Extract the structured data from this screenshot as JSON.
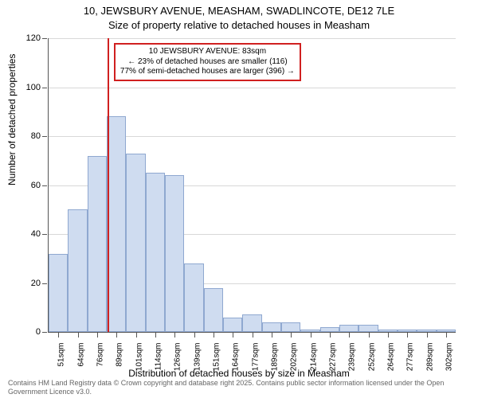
{
  "chart": {
    "type": "histogram",
    "title_main": "10, JEWSBURY AVENUE, MEASHAM, SWADLINCOTE, DE12 7LE",
    "title_sub": "Size of property relative to detached houses in Measham",
    "y_label": "Number of detached properties",
    "x_label": "Distribution of detached houses by size in Measham",
    "background_color": "#ffffff",
    "grid_color": "#d8d8d8",
    "axis_color": "#555555",
    "bar_fill": "#cfdcf0",
    "bar_border": "#8fa8d0",
    "marker_color": "#d02020",
    "y": {
      "min": 0,
      "max": 120,
      "ticks": [
        0,
        20,
        40,
        60,
        80,
        100,
        120
      ]
    },
    "x_categories": [
      "51sqm",
      "64sqm",
      "76sqm",
      "89sqm",
      "101sqm",
      "114sqm",
      "126sqm",
      "139sqm",
      "151sqm",
      "164sqm",
      "177sqm",
      "189sqm",
      "202sqm",
      "214sqm",
      "227sqm",
      "239sqm",
      "252sqm",
      "264sqm",
      "277sqm",
      "289sqm",
      "302sqm"
    ],
    "bars": [
      32,
      50,
      72,
      88,
      73,
      65,
      64,
      28,
      18,
      6,
      7,
      4,
      4,
      1,
      2,
      3,
      3,
      1,
      1,
      1,
      1
    ],
    "marker_sqm": 83,
    "annotation": {
      "line1": "10 JEWSBURY AVENUE: 83sqm",
      "line2": "← 23% of detached houses are smaller (116)",
      "line3": "77% of semi-detached houses are larger (396) →"
    },
    "attribution": "Contains HM Land Registry data © Crown copyright and database right 2025. Contains public sector information licensed under the Open Government Licence v3.0.",
    "title_fontsize": 13,
    "label_fontsize": 12,
    "tick_fontsize": 11,
    "xtick_fontsize": 10,
    "annotation_fontsize": 10,
    "attribution_fontsize": 9
  }
}
